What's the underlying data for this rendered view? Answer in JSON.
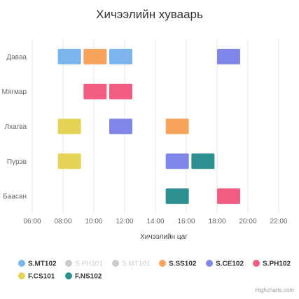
{
  "chart_data": {
    "type": "bar",
    "subtype": "xrange",
    "title": "Хичээлийн хуваарь",
    "xlabel": "Хичээлийн цаг",
    "ylabel": "",
    "xlim": [
      "06:00",
      "23:00"
    ],
    "x_ticks": [
      "06:00",
      "08:00",
      "10:00",
      "12:00",
      "14:00",
      "16:00",
      "18:00",
      "20:00",
      "22:00"
    ],
    "categories": [
      "Даваа",
      "Мягмар",
      "Лхагва",
      "Пүрэв",
      "Баасан"
    ],
    "grid": true,
    "legend_position": "bottom",
    "series": [
      {
        "name": "S.MT102",
        "color": "#7cb5ec",
        "visible": true,
        "items": [
          {
            "day": "Даваа",
            "start": "07:40",
            "end": "09:10"
          },
          {
            "day": "Даваа",
            "start": "11:00",
            "end": "12:30"
          }
        ]
      },
      {
        "name": "S.PH101",
        "color": "#434348",
        "visible": false,
        "items": []
      },
      {
        "name": "S.MT101",
        "color": "#90ed7d",
        "visible": false,
        "items": []
      },
      {
        "name": "S.SS102",
        "color": "#f7a35c",
        "visible": true,
        "items": [
          {
            "day": "Даваа",
            "start": "09:20",
            "end": "10:50"
          },
          {
            "day": "Лхагва",
            "start": "14:40",
            "end": "16:10"
          }
        ]
      },
      {
        "name": "S.CE102",
        "color": "#8085e9",
        "visible": true,
        "items": [
          {
            "day": "Даваа",
            "start": "18:00",
            "end": "19:30"
          },
          {
            "day": "Лхагва",
            "start": "11:00",
            "end": "12:30"
          },
          {
            "day": "Пүрэв",
            "start": "14:40",
            "end": "16:10"
          }
        ]
      },
      {
        "name": "S.PH102",
        "color": "#f15c80",
        "visible": true,
        "items": [
          {
            "day": "Мягмар",
            "start": "09:20",
            "end": "10:50"
          },
          {
            "day": "Мягмар",
            "start": "11:00",
            "end": "12:30"
          },
          {
            "day": "Баасан",
            "start": "18:00",
            "end": "19:30"
          }
        ]
      },
      {
        "name": "F.CS101",
        "color": "#e4d354",
        "visible": true,
        "items": [
          {
            "day": "Лхагва",
            "start": "07:40",
            "end": "09:10"
          },
          {
            "day": "Пүрэв",
            "start": "07:40",
            "end": "09:10"
          }
        ]
      },
      {
        "name": "F.NS102",
        "color": "#2b908f",
        "visible": true,
        "items": [
          {
            "day": "Пүрэв",
            "start": "16:20",
            "end": "17:50"
          },
          {
            "day": "Баасан",
            "start": "14:40",
            "end": "16:10"
          }
        ]
      }
    ]
  },
  "legend": {
    "hidden_color": "#cccccc"
  },
  "credits": "Highcharts.com"
}
